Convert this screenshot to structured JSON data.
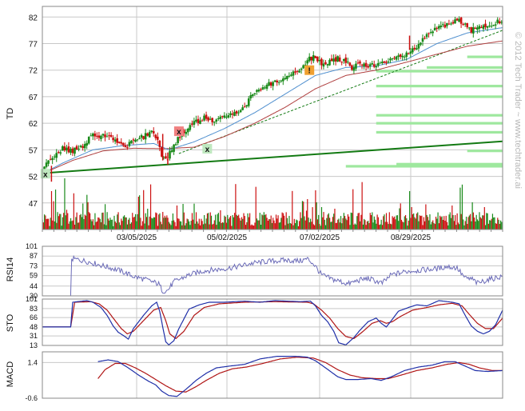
{
  "chart_data": {
    "type": "candlestick",
    "watermark": "© 2012 Tech Trader ~ www.techtrader.ai",
    "x_dates": [
      "03/05/2025",
      "05/02/2025",
      "07/02/2025",
      "08/29/2025"
    ],
    "colors": {
      "up": "#1a8a1a",
      "down": "#cc1111",
      "ma_fast": "#4f8fcf",
      "ma_slow": "#b04040",
      "trend": "#137a13",
      "band": "#9ee89e",
      "rsi": "#6b6bb8",
      "sto_k": "#1f2fa8",
      "sto_d": "#b01515"
    },
    "price_panel": {
      "ylabel": "TD",
      "yticks": [
        "82",
        "77",
        "72",
        "67",
        "62",
        "57",
        "52",
        "47"
      ],
      "ylim": [
        42,
        84
      ],
      "close_anchors": [
        [
          0,
          53
        ],
        [
          8,
          55.5
        ],
        [
          20,
          57.2
        ],
        [
          30,
          56.8
        ],
        [
          40,
          57.5
        ],
        [
          48,
          59.5
        ],
        [
          58,
          59.8
        ],
        [
          70,
          59.2
        ],
        [
          80,
          57.5
        ],
        [
          90,
          58.5
        ],
        [
          100,
          59.5
        ],
        [
          108,
          60.5
        ],
        [
          114,
          59
        ],
        [
          119,
          55.5
        ],
        [
          124,
          55.5
        ],
        [
          130,
          58
        ],
        [
          140,
          60.5
        ],
        [
          150,
          62
        ],
        [
          160,
          63
        ],
        [
          170,
          62.3
        ],
        [
          178,
          63
        ],
        [
          184,
          63.5
        ],
        [
          190,
          64
        ],
        [
          200,
          65.2
        ],
        [
          206,
          67
        ],
        [
          212,
          68
        ],
        [
          220,
          69
        ],
        [
          232,
          70
        ],
        [
          244,
          71
        ],
        [
          256,
          72.5
        ],
        [
          262,
          73.8
        ],
        [
          268,
          74.5
        ],
        [
          276,
          73.2
        ],
        [
          284,
          73.5
        ],
        [
          292,
          74.2
        ],
        [
          300,
          73.5
        ],
        [
          306,
          72.5
        ],
        [
          316,
          73.2
        ],
        [
          324,
          72.8
        ],
        [
          334,
          73.2
        ],
        [
          342,
          73.8
        ],
        [
          350,
          74.5
        ],
        [
          356,
          74.3
        ],
        [
          362,
          75.5
        ],
        [
          368,
          76
        ],
        [
          376,
          78
        ],
        [
          384,
          79.3
        ],
        [
          392,
          80
        ],
        [
          400,
          80.5
        ],
        [
          410,
          81.5
        ],
        [
          418,
          80.3
        ],
        [
          424,
          79.5
        ],
        [
          432,
          80.2
        ],
        [
          440,
          80.5
        ],
        [
          448,
          81
        ],
        [
          455,
          81
        ]
      ],
      "ma_fast_anchors": [
        [
          0,
          52.5
        ],
        [
          20,
          54.5
        ],
        [
          50,
          57
        ],
        [
          80,
          57.8
        ],
        [
          110,
          58.2
        ],
        [
          125,
          57
        ],
        [
          150,
          58.5
        ],
        [
          180,
          61
        ],
        [
          210,
          64
        ],
        [
          240,
          67.5
        ],
        [
          270,
          71
        ],
        [
          300,
          72.5
        ],
        [
          330,
          72.8
        ],
        [
          360,
          74
        ],
        [
          390,
          77
        ],
        [
          420,
          79
        ],
        [
          455,
          80
        ]
      ],
      "ma_slow_anchors": [
        [
          0,
          52.5
        ],
        [
          30,
          55
        ],
        [
          60,
          56.8
        ],
        [
          90,
          57.3
        ],
        [
          120,
          57.2
        ],
        [
          150,
          57.5
        ],
        [
          180,
          59.5
        ],
        [
          210,
          62
        ],
        [
          240,
          65
        ],
        [
          270,
          68.5
        ],
        [
          300,
          71
        ],
        [
          330,
          72
        ],
        [
          360,
          73.5
        ],
        [
          390,
          75
        ],
        [
          420,
          76.5
        ],
        [
          455,
          77.5
        ]
      ],
      "trendlines": [
        {
          "style": "solid",
          "from": [
            0,
            52.6
          ],
          "to": [
            455,
            58.6
          ]
        },
        {
          "style": "dashed",
          "from": [
            135,
            56.3
          ],
          "to": [
            455,
            79.5
          ]
        }
      ],
      "bands": [
        74.5,
        72.5,
        71.8,
        69,
        67,
        63.5,
        62,
        60.3,
        56.8,
        54.3,
        53.9
      ],
      "markers": [
        {
          "label": "x",
          "x": 3,
          "price": 52.5,
          "color": "#bfe8bf"
        },
        {
          "label": "x",
          "x": 135,
          "price": 60.5,
          "color": "#f08080"
        },
        {
          "label": "x",
          "x": 163,
          "price": 57.2,
          "color": "#bfe8bf"
        },
        {
          "label": "!",
          "x": 264,
          "price": 72,
          "color": "#f0a030"
        }
      ]
    },
    "rsi_panel": {
      "ylabel": "RSI14",
      "yticks": [
        "101",
        "87",
        "73",
        "59",
        "44",
        "30"
      ],
      "ylim": [
        30,
        101
      ],
      "anchors": [
        [
          0,
          30
        ],
        [
          28,
          30
        ],
        [
          29,
          83
        ],
        [
          35,
          82
        ],
        [
          45,
          79
        ],
        [
          60,
          73
        ],
        [
          75,
          67
        ],
        [
          90,
          58
        ],
        [
          105,
          52
        ],
        [
          115,
          47
        ],
        [
          119,
          37
        ],
        [
          124,
          38
        ],
        [
          130,
          50
        ],
        [
          145,
          60
        ],
        [
          160,
          66
        ],
        [
          175,
          68
        ],
        [
          190,
          71
        ],
        [
          205,
          76
        ],
        [
          220,
          79
        ],
        [
          240,
          81
        ],
        [
          255,
          80
        ],
        [
          262,
          83
        ],
        [
          268,
          76
        ],
        [
          276,
          60
        ],
        [
          286,
          54
        ],
        [
          294,
          51
        ],
        [
          302,
          47
        ],
        [
          312,
          52
        ],
        [
          322,
          55
        ],
        [
          330,
          51
        ],
        [
          336,
          48
        ],
        [
          345,
          60
        ],
        [
          360,
          65
        ],
        [
          375,
          67
        ],
        [
          390,
          69
        ],
        [
          400,
          72
        ],
        [
          410,
          70
        ],
        [
          418,
          55
        ],
        [
          425,
          54
        ],
        [
          430,
          48
        ],
        [
          440,
          53
        ],
        [
          455,
          58
        ]
      ]
    },
    "sto_panel": {
      "ylabel": "STO",
      "yticks": [
        "101",
        "83",
        "66",
        "48",
        "31",
        "13"
      ],
      "ylim": [
        13,
        101
      ],
      "k_anchors": [
        [
          0,
          48
        ],
        [
          26,
          48
        ],
        [
          28,
          48
        ],
        [
          30,
          95
        ],
        [
          44,
          98
        ],
        [
          50,
          95
        ],
        [
          58,
          85
        ],
        [
          64,
          70
        ],
        [
          70,
          50
        ],
        [
          75,
          38
        ],
        [
          80,
          32
        ],
        [
          85,
          25
        ],
        [
          90,
          45
        ],
        [
          100,
          70
        ],
        [
          108,
          88
        ],
        [
          113,
          95
        ],
        [
          116,
          78
        ],
        [
          119,
          48
        ],
        [
          122,
          20
        ],
        [
          125,
          14
        ],
        [
          130,
          22
        ],
        [
          135,
          45
        ],
        [
          145,
          82
        ],
        [
          155,
          90
        ],
        [
          165,
          95
        ],
        [
          180,
          95
        ],
        [
          200,
          97
        ],
        [
          215,
          95
        ],
        [
          230,
          98
        ],
        [
          255,
          96
        ],
        [
          265,
          97
        ],
        [
          270,
          88
        ],
        [
          276,
          70
        ],
        [
          282,
          58
        ],
        [
          288,
          40
        ],
        [
          293,
          18
        ],
        [
          300,
          14
        ],
        [
          308,
          28
        ],
        [
          314,
          42
        ],
        [
          322,
          58
        ],
        [
          330,
          65
        ],
        [
          335,
          55
        ],
        [
          340,
          48
        ],
        [
          345,
          60
        ],
        [
          352,
          78
        ],
        [
          362,
          85
        ],
        [
          370,
          90
        ],
        [
          380,
          88
        ],
        [
          392,
          98
        ],
        [
          405,
          95
        ],
        [
          412,
          92
        ],
        [
          418,
          70
        ],
        [
          424,
          50
        ],
        [
          430,
          40
        ],
        [
          436,
          35
        ],
        [
          442,
          40
        ],
        [
          448,
          52
        ],
        [
          455,
          80
        ]
      ],
      "d_anchors": [
        [
          0,
          48
        ],
        [
          28,
          48
        ],
        [
          32,
          95
        ],
        [
          48,
          96
        ],
        [
          56,
          92
        ],
        [
          64,
          80
        ],
        [
          72,
          60
        ],
        [
          78,
          45
        ],
        [
          84,
          35
        ],
        [
          90,
          40
        ],
        [
          100,
          60
        ],
        [
          110,
          80
        ],
        [
          117,
          85
        ],
        [
          122,
          60
        ],
        [
          126,
          35
        ],
        [
          132,
          26
        ],
        [
          140,
          40
        ],
        [
          150,
          70
        ],
        [
          160,
          85
        ],
        [
          175,
          92
        ],
        [
          200,
          95
        ],
        [
          230,
          96
        ],
        [
          262,
          95
        ],
        [
          268,
          92
        ],
        [
          276,
          80
        ],
        [
          284,
          65
        ],
        [
          292,
          45
        ],
        [
          300,
          30
        ],
        [
          308,
          26
        ],
        [
          316,
          38
        ],
        [
          326,
          55
        ],
        [
          334,
          60
        ],
        [
          340,
          55
        ],
        [
          346,
          58
        ],
        [
          354,
          68
        ],
        [
          366,
          80
        ],
        [
          380,
          85
        ],
        [
          392,
          90
        ],
        [
          405,
          93
        ],
        [
          415,
          88
        ],
        [
          422,
          72
        ],
        [
          430,
          55
        ],
        [
          438,
          45
        ],
        [
          446,
          45
        ],
        [
          455,
          65
        ]
      ]
    },
    "macd_panel": {
      "ylabel": "MACD",
      "yticks": [
        "1.4",
        "-0.6"
      ],
      "ylim": [
        -0.6,
        2.0
      ],
      "macd_anchors": [
        [
          55,
          1.45
        ],
        [
          65,
          1.55
        ],
        [
          75,
          1.45
        ],
        [
          85,
          1.1
        ],
        [
          95,
          0.7
        ],
        [
          105,
          0.35
        ],
        [
          112,
          0.15
        ],
        [
          118,
          -0.2
        ],
        [
          125,
          -0.45
        ],
        [
          133,
          -0.5
        ],
        [
          142,
          -0.1
        ],
        [
          152,
          0.4
        ],
        [
          162,
          0.8
        ],
        [
          172,
          1.1
        ],
        [
          185,
          1.2
        ],
        [
          200,
          1.3
        ],
        [
          215,
          1.6
        ],
        [
          232,
          1.75
        ],
        [
          250,
          1.75
        ],
        [
          262,
          1.7
        ],
        [
          270,
          1.5
        ],
        [
          280,
          1.1
        ],
        [
          292,
          0.6
        ],
        [
          300,
          0.45
        ],
        [
          312,
          0.45
        ],
        [
          325,
          0.5
        ],
        [
          335,
          0.4
        ],
        [
          345,
          0.6
        ],
        [
          358,
          0.95
        ],
        [
          372,
          1.15
        ],
        [
          385,
          1.25
        ],
        [
          398,
          1.45
        ],
        [
          408,
          1.45
        ],
        [
          418,
          1.2
        ],
        [
          428,
          0.95
        ],
        [
          440,
          0.9
        ],
        [
          455,
          0.95
        ]
      ],
      "signal_anchors": [
        [
          55,
          0.5
        ],
        [
          62,
          1.0
        ],
        [
          72,
          1.35
        ],
        [
          82,
          1.35
        ],
        [
          92,
          1.1
        ],
        [
          102,
          0.8
        ],
        [
          112,
          0.45
        ],
        [
          122,
          0.1
        ],
        [
          132,
          -0.2
        ],
        [
          142,
          -0.25
        ],
        [
          152,
          0.05
        ],
        [
          162,
          0.4
        ],
        [
          175,
          0.8
        ],
        [
          188,
          1.05
        ],
        [
          202,
          1.15
        ],
        [
          218,
          1.35
        ],
        [
          235,
          1.6
        ],
        [
          252,
          1.7
        ],
        [
          268,
          1.65
        ],
        [
          280,
          1.4
        ],
        [
          292,
          1.0
        ],
        [
          304,
          0.7
        ],
        [
          316,
          0.55
        ],
        [
          330,
          0.5
        ],
        [
          342,
          0.5
        ],
        [
          355,
          0.7
        ],
        [
          370,
          0.95
        ],
        [
          385,
          1.1
        ],
        [
          400,
          1.3
        ],
        [
          412,
          1.4
        ],
        [
          422,
          1.3
        ],
        [
          432,
          1.1
        ],
        [
          445,
          0.95
        ],
        [
          455,
          0.95
        ]
      ]
    }
  }
}
